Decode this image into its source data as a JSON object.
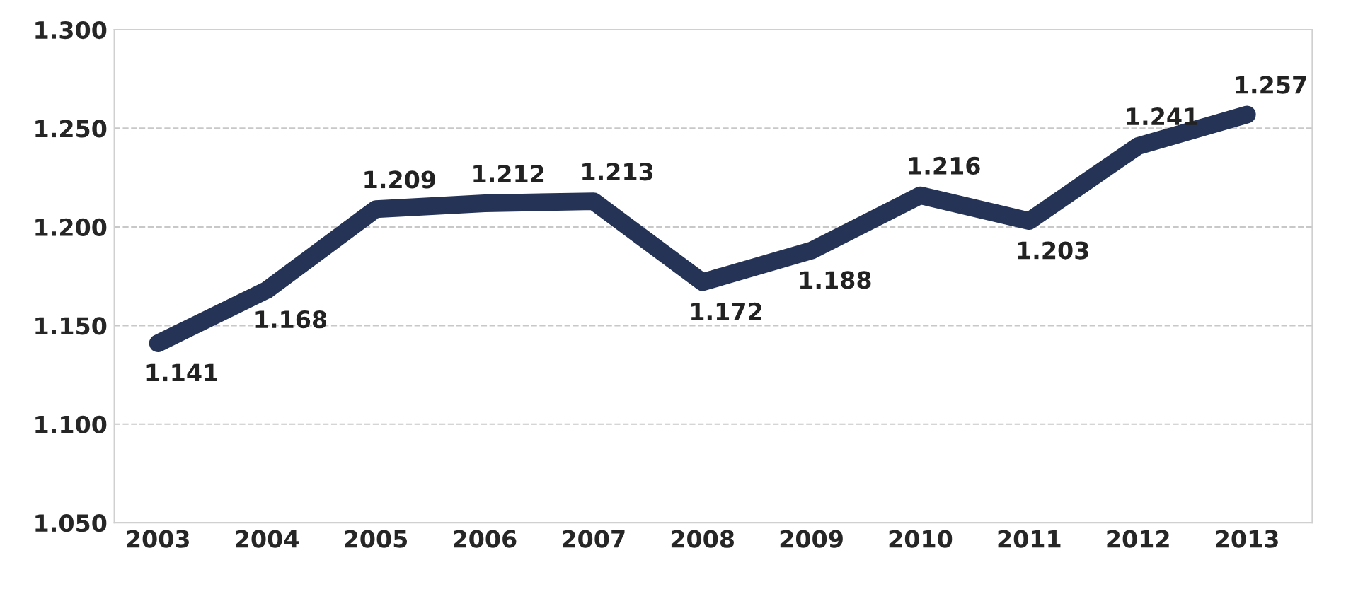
{
  "chart_data": {
    "type": "line",
    "categories": [
      "2003",
      "2004",
      "2005",
      "2006",
      "2007",
      "2008",
      "2009",
      "2010",
      "2011",
      "2012",
      "2013"
    ],
    "series": [
      {
        "color": "#253356",
        "values": [
          1.141,
          1.168,
          1.209,
          1.212,
          1.213,
          1.172,
          1.188,
          1.216,
          1.203,
          1.241,
          1.257
        ],
        "value_labels": [
          "1.141",
          "1.168",
          "1.209",
          "1.212",
          "1.213",
          "1.172",
          "1.188",
          "1.216",
          "1.203",
          "1.241",
          "1.257"
        ]
      }
    ],
    "ylim": [
      1.05,
      1.3
    ],
    "yticks": [
      {
        "value": 1.05,
        "label": "1.050"
      },
      {
        "value": 1.1,
        "label": "1.100"
      },
      {
        "value": 1.15,
        "label": "1.150"
      },
      {
        "value": 1.2,
        "label": "1.200"
      },
      {
        "value": 1.25,
        "label": "1.250"
      },
      {
        "value": 1.3,
        "label": "1.300"
      }
    ],
    "grid": "y",
    "marker": "none",
    "line_style": "solid",
    "legend": false
  }
}
